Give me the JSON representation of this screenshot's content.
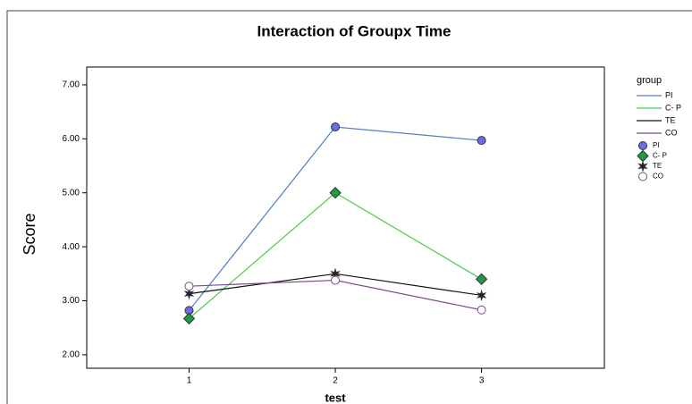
{
  "chart_data": {
    "type": "line",
    "title": "Interaction of Groupx Time",
    "x_label": "test",
    "y_label": "Score",
    "x": [
      1,
      2,
      3
    ],
    "xlim": [
      0.3,
      3.84
    ],
    "xticks": [
      1,
      2,
      3
    ],
    "ylim": [
      1.75,
      7.33
    ],
    "yticks": [
      {
        "value": 2,
        "label": "2.00"
      },
      {
        "value": 3,
        "label": "3.00"
      },
      {
        "value": 4,
        "label": "4.00"
      },
      {
        "value": 5,
        "label": "5.00"
      },
      {
        "value": 6,
        "label": "6.00"
      },
      {
        "value": 7,
        "label": "7.00"
      }
    ],
    "legend_title": "group",
    "series": [
      {
        "name": "PI",
        "color": "#4f7fbf",
        "marker": "circle",
        "marker_color": "#6a6ee6",
        "values": [
          2.82,
          6.22,
          5.97
        ]
      },
      {
        "name": "C- P",
        "color": "#44cc44",
        "marker": "diamond",
        "marker_color": "#1e9a45",
        "values": [
          2.67,
          5.0,
          3.4
        ]
      },
      {
        "name": "TE",
        "color": "#111111",
        "marker": "star",
        "marker_color": "#222222",
        "values": [
          3.13,
          3.5,
          3.1
        ]
      },
      {
        "name": "CO",
        "color": "#7a4a8a",
        "marker": "open-circle",
        "marker_color": "#ffffff",
        "values": [
          3.27,
          3.38,
          2.83
        ]
      }
    ]
  }
}
